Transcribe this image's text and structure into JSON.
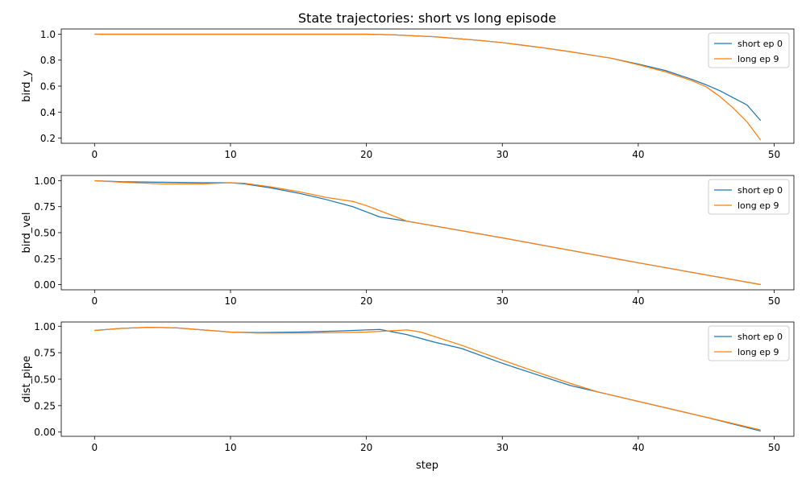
{
  "figure": {
    "title": "State trajectories: short vs long episode",
    "xlabel": "step"
  },
  "chart_data": [
    {
      "type": "line",
      "ylabel": "bird_y",
      "xlim": [
        -2.45,
        51.45
      ],
      "ylim": [
        0.16,
        1.04
      ],
      "xticks": [
        0,
        10,
        20,
        30,
        40,
        50
      ],
      "yticks": [
        0.2,
        0.4,
        0.6,
        0.8,
        1.0
      ],
      "ytick_labels": [
        "0.2",
        "0.4",
        "0.6",
        "0.8",
        "1.0"
      ],
      "legend_position": "top-right",
      "grid": false,
      "series": [
        {
          "name": "short ep 0",
          "color": "#1f77b4",
          "x": [
            0,
            5,
            10,
            15,
            20,
            22,
            25,
            28,
            30,
            33,
            35,
            38,
            40,
            42,
            44,
            45,
            46,
            47,
            48,
            49
          ],
          "y": [
            1.0,
            1.0,
            1.0,
            1.0,
            1.0,
            0.995,
            0.98,
            0.955,
            0.935,
            0.895,
            0.865,
            0.815,
            0.77,
            0.72,
            0.65,
            0.61,
            0.565,
            0.51,
            0.455,
            0.335
          ]
        },
        {
          "name": "long ep 9",
          "color": "#ff7f0e",
          "x": [
            0,
            5,
            10,
            15,
            20,
            22,
            25,
            28,
            30,
            33,
            35,
            38,
            40,
            42,
            44,
            45,
            46,
            47,
            48,
            49
          ],
          "y": [
            1.0,
            1.0,
            1.0,
            1.0,
            1.0,
            0.995,
            0.98,
            0.955,
            0.935,
            0.895,
            0.865,
            0.815,
            0.765,
            0.71,
            0.64,
            0.595,
            0.52,
            0.43,
            0.325,
            0.185
          ]
        }
      ]
    },
    {
      "type": "line",
      "ylabel": "bird_vel",
      "xlim": [
        -2.45,
        51.45
      ],
      "ylim": [
        -0.05,
        1.05
      ],
      "xticks": [
        0,
        10,
        20,
        30,
        40,
        50
      ],
      "yticks": [
        0.0,
        0.25,
        0.5,
        0.75,
        1.0
      ],
      "ytick_labels": [
        "0.00",
        "0.25",
        "0.50",
        "0.75",
        "1.00"
      ],
      "legend_position": "top-right",
      "grid": false,
      "series": [
        {
          "name": "short ep 0",
          "color": "#1f77b4",
          "x": [
            0,
            2,
            5,
            8,
            10,
            11,
            13,
            15,
            17,
            19,
            20,
            21,
            23,
            30,
            40,
            49
          ],
          "y": [
            1.0,
            0.99,
            0.985,
            0.98,
            0.98,
            0.97,
            0.93,
            0.88,
            0.82,
            0.75,
            0.7,
            0.65,
            0.61,
            0.45,
            0.21,
            0.0
          ]
        },
        {
          "name": "long ep 9",
          "color": "#ff7f0e",
          "x": [
            0,
            2,
            5,
            8,
            10,
            11,
            13,
            15,
            17,
            19,
            20,
            21,
            23,
            30,
            40,
            49
          ],
          "y": [
            1.0,
            0.985,
            0.97,
            0.97,
            0.98,
            0.975,
            0.94,
            0.895,
            0.84,
            0.8,
            0.76,
            0.71,
            0.61,
            0.45,
            0.21,
            0.0
          ]
        }
      ]
    },
    {
      "type": "line",
      "ylabel": "dist_pipe",
      "xlim": [
        -2.45,
        51.45
      ],
      "ylim": [
        -0.04,
        1.04
      ],
      "xticks": [
        0,
        10,
        20,
        30,
        40,
        50
      ],
      "yticks": [
        0.0,
        0.25,
        0.5,
        0.75,
        1.0
      ],
      "ytick_labels": [
        "0.00",
        "0.25",
        "0.50",
        "0.75",
        "1.00"
      ],
      "legend_position": "top-right",
      "grid": false,
      "series": [
        {
          "name": "short ep 0",
          "color": "#1f77b4",
          "x": [
            0,
            2,
            4,
            6,
            8,
            10,
            12,
            15,
            18,
            21,
            23,
            25,
            27,
            30,
            32,
            35,
            37,
            40,
            45,
            49
          ],
          "y": [
            0.96,
            0.98,
            0.99,
            0.985,
            0.965,
            0.945,
            0.94,
            0.945,
            0.955,
            0.97,
            0.92,
            0.85,
            0.79,
            0.65,
            0.565,
            0.44,
            0.38,
            0.29,
            0.14,
            0.01
          ]
        },
        {
          "name": "long ep 9",
          "color": "#ff7f0e",
          "x": [
            0,
            2,
            4,
            6,
            8,
            10,
            12,
            15,
            18,
            20,
            23,
            24,
            27,
            30,
            32,
            35,
            37,
            40,
            45,
            49
          ],
          "y": [
            0.96,
            0.98,
            0.99,
            0.985,
            0.965,
            0.945,
            0.935,
            0.935,
            0.94,
            0.945,
            0.965,
            0.945,
            0.82,
            0.68,
            0.59,
            0.46,
            0.38,
            0.29,
            0.14,
            0.02
          ]
        }
      ]
    }
  ]
}
